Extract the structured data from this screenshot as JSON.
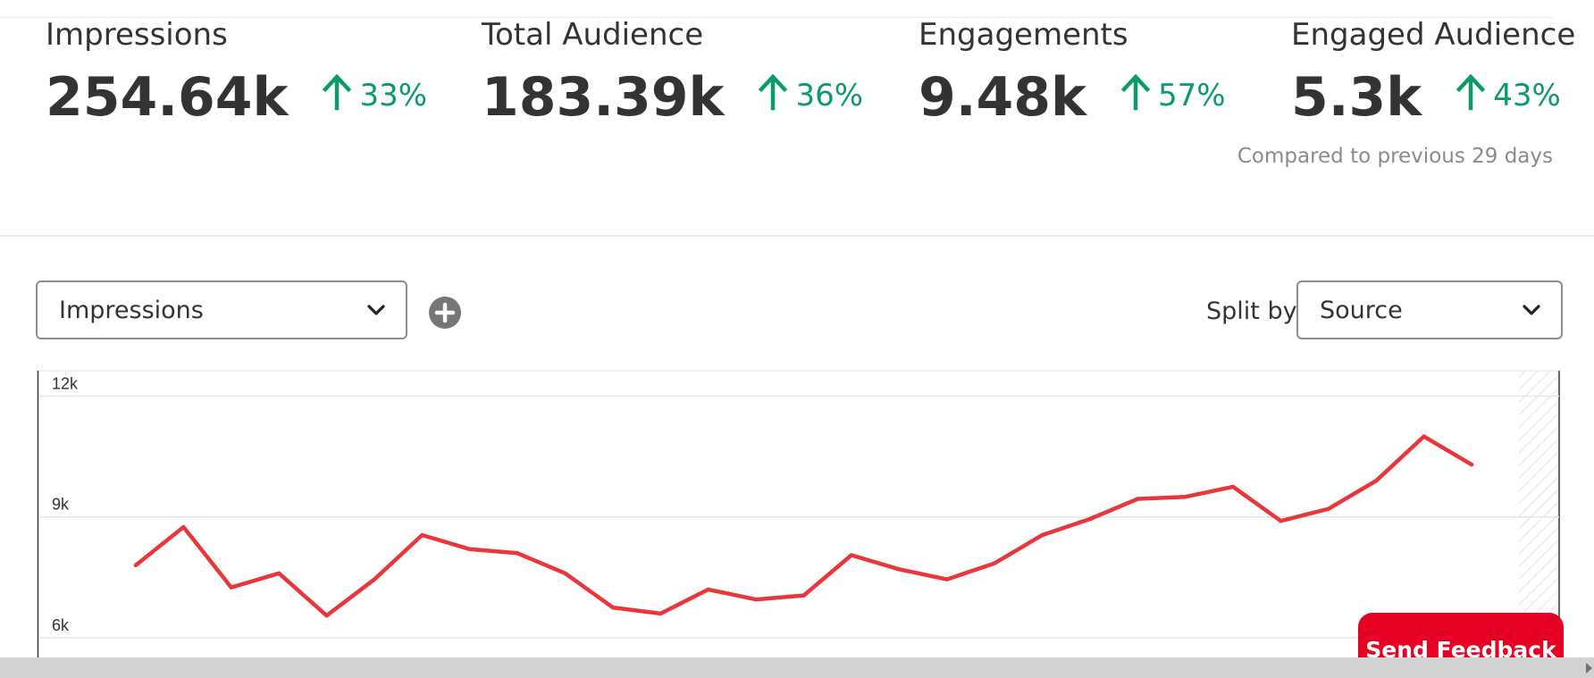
{
  "stats": [
    {
      "label": "Impressions",
      "value": "254.64k",
      "change": "33%"
    },
    {
      "label": "Total Audience",
      "value": "183.39k",
      "change": "36%"
    },
    {
      "label": "Engagements",
      "value": "9.48k",
      "change": "57%"
    },
    {
      "label": "Engaged Audience",
      "value": "5.3k",
      "change": "43%"
    }
  ],
  "compare_note": "Compared to previous 29 days",
  "controls": {
    "metric_select": "Impressions",
    "split_label": "Split by",
    "split_select": "Source"
  },
  "colors": {
    "accent": "#e60023",
    "line": "#e8363b",
    "positive": "#0a9a6b"
  },
  "icons": {
    "trend": "arrow-up-icon",
    "dropdown": "chevron-down-icon",
    "add": "plus-circle-icon"
  },
  "feedback_button": "Send Feedback",
  "chart_data": {
    "type": "line",
    "y_ticks": [
      "12k",
      "9k",
      "6k"
    ],
    "ylim": [
      5200,
      12300
    ],
    "series": [
      {
        "values": [
          7800,
          8750,
          7250,
          7600,
          6550,
          7450,
          8550,
          8200,
          8100,
          7600,
          6750,
          6600,
          7200,
          6950,
          7050,
          8050,
          7700,
          7450,
          7850,
          8550,
          8950,
          9450,
          9500,
          9750,
          8900,
          9200,
          9900,
          11000,
          10300
        ]
      }
    ]
  }
}
